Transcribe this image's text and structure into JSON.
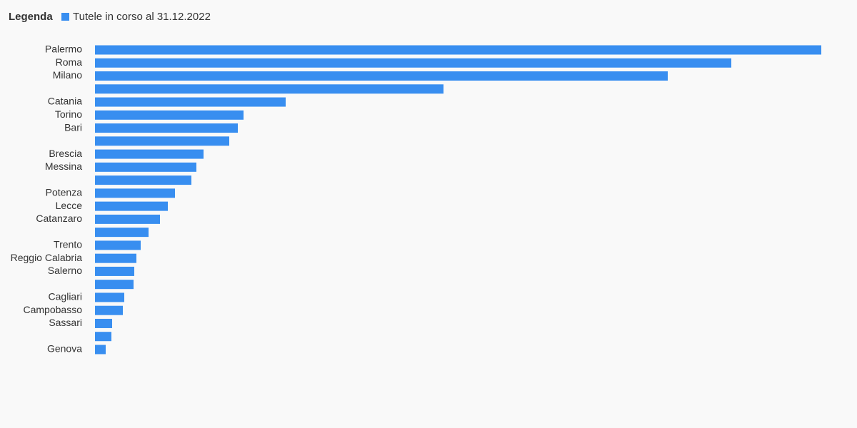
{
  "chart_data": {
    "type": "bar",
    "orientation": "horizontal",
    "legend_title": "Legenda",
    "categories": [
      "Palermo",
      "Roma",
      "Milano",
      null,
      "Catania",
      "Torino",
      "Bari",
      null,
      "Brescia",
      "Messina",
      null,
      "Potenza",
      "Lecce",
      "Catanzaro",
      null,
      "Trento",
      "Reggio Calabria",
      "Salerno",
      null,
      "Cagliari",
      "Campobasso",
      "Sassari",
      null,
      "Genova"
    ],
    "series": [
      {
        "name": "Tutele in corso al 31.12.2022",
        "color": "#388ef0",
        "values": [
          1017,
          891,
          802,
          488,
          267,
          208,
          200,
          188,
          152,
          142,
          135,
          112,
          102,
          91,
          75,
          64,
          58,
          55,
          54,
          41,
          39,
          24,
          23,
          15
        ]
      }
    ]
  }
}
